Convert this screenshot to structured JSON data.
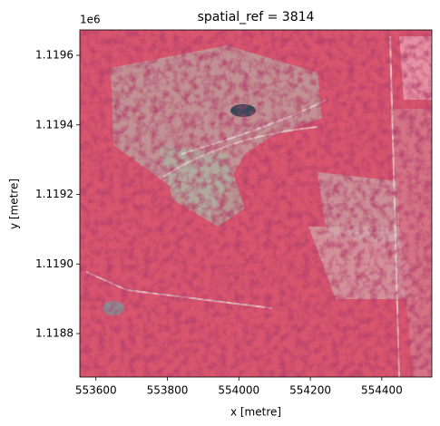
{
  "chart_data": {
    "type": "image",
    "title": "spatial_ref = 3814",
    "x_label": "x [metre]",
    "y_label": "y [metre]",
    "y_offset_label": "1e6",
    "xlim": [
      553555,
      554540
    ],
    "ylim": [
      1118675,
      1119673
    ],
    "xticks": [
      553600,
      553800,
      554000,
      554200,
      554400
    ],
    "yticks": [
      {
        "value": 1118800,
        "label": "1.1188"
      },
      {
        "value": 1119000,
        "label": "1.1190"
      },
      {
        "value": 1119200,
        "label": "1.1192"
      },
      {
        "value": 1119400,
        "label": "1.1194"
      },
      {
        "value": 1119600,
        "label": "1.1196"
      }
    ]
  }
}
